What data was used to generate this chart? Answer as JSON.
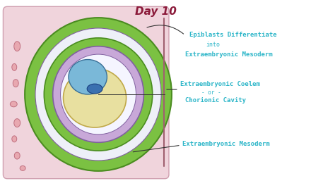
{
  "title": "Day 10",
  "title_color": "#8B1A3A",
  "title_fontsize": 11,
  "bg_color": "#ffffff",
  "outer_rect_color": "#f0d4dc",
  "green_color": "#7bc142",
  "green_edge": "#4a8c20",
  "purple_color": "#c8a8d8",
  "purple_edge": "#8060a0",
  "white_cavity": "#eef0f8",
  "yolk_color": "#e8e0a0",
  "yolk_edge": "#c0a848",
  "amnion_color": "#7ab8d8",
  "amnion_edge": "#3a7098",
  "pink_blob_color": "#e8a8b0",
  "pink_blob_edge": "#c07080",
  "mauve_line": "#a06070",
  "label_color": "#2ab5c8",
  "label_fontsize": 6.5,
  "line_color": "#333333",
  "label1a": "Epiblasts Differentiate",
  "label1b": "into",
  "label1c": "Extraembryonic Mesoderm",
  "label2a": "Extraembryonic Coelem",
  "label2b": "- or -",
  "label2c": "Chorionic Cavity",
  "label3": "Extraembryonic Mesoderm"
}
